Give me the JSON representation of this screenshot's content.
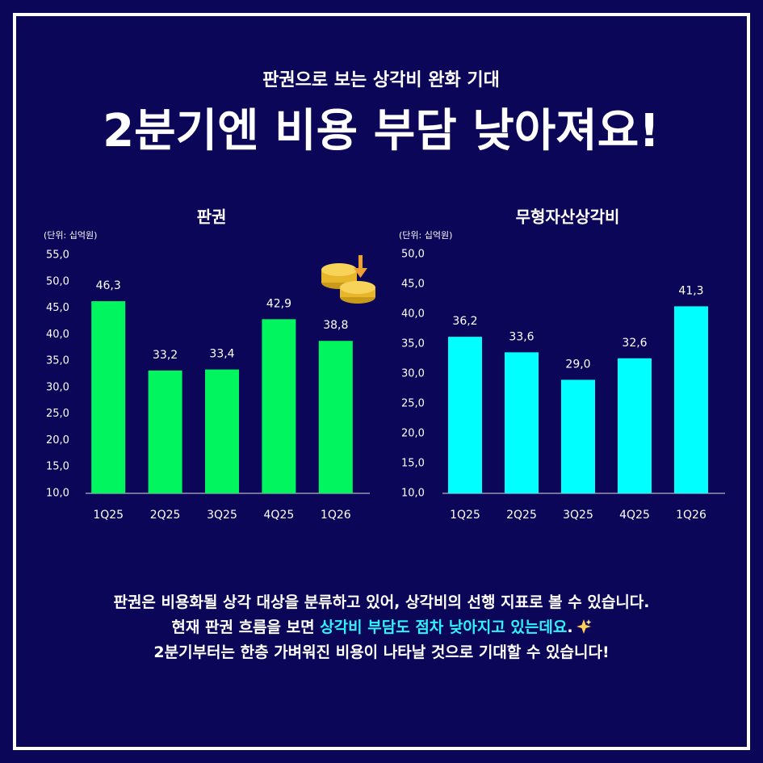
{
  "header": {
    "kicker": "판권으로 보는 상각비 완화 기대",
    "title": "2분기엔 비용 부담 낮아져요!"
  },
  "chart_data": [
    {
      "type": "bar",
      "title": "판권",
      "unit": "(단위: 십억원)",
      "color": "#00f55f",
      "categories": [
        "1Q25",
        "2Q25",
        "3Q25",
        "4Q25",
        "1Q26"
      ],
      "values": [
        46.3,
        33.2,
        33.4,
        42.9,
        38.8
      ],
      "value_labels": [
        "46,3",
        "33,2",
        "33,4",
        "42,9",
        "38,8"
      ],
      "ylim": [
        10,
        55
      ],
      "yticks": [
        {
          "value": 10,
          "label": "10,0"
        },
        {
          "value": 15,
          "label": "15,0"
        },
        {
          "value": 20,
          "label": "20,0"
        },
        {
          "value": 25,
          "label": "25,0"
        },
        {
          "value": 30,
          "label": "30,0"
        },
        {
          "value": 35,
          "label": "35,0"
        },
        {
          "value": 40,
          "label": "40,0"
        },
        {
          "value": 45,
          "label": "45,0"
        },
        {
          "value": 50,
          "label": "50,0"
        },
        {
          "value": 55,
          "label": "55,0"
        }
      ]
    },
    {
      "type": "bar",
      "title": "무형자산상각비",
      "unit": "(단위: 십억원)",
      "color": "#00ffff",
      "categories": [
        "1Q25",
        "2Q25",
        "3Q25",
        "4Q25",
        "1Q26"
      ],
      "values": [
        36.2,
        33.6,
        29.0,
        32.6,
        41.3
      ],
      "value_labels": [
        "36,2",
        "33,6",
        "29,0",
        "32,6",
        "41,3"
      ],
      "ylim": [
        10,
        50
      ],
      "yticks": [
        {
          "value": 10,
          "label": "10,0"
        },
        {
          "value": 15,
          "label": "15,0"
        },
        {
          "value": 20,
          "label": "20,0"
        },
        {
          "value": 25,
          "label": "25,0"
        },
        {
          "value": 30,
          "label": "30,0"
        },
        {
          "value": 35,
          "label": "35,0"
        },
        {
          "value": 40,
          "label": "40,0"
        },
        {
          "value": 45,
          "label": "45,0"
        },
        {
          "value": 50,
          "label": "50,0"
        }
      ]
    }
  ],
  "footer": {
    "line1": "판권은 비용화될 상각 대상을 분류하고 있어, 상각비의 선행 지표로 볼 수 있습니다.",
    "line2_before": "현재 판권 흐름을 보면 ",
    "line2_highlight": "상각비 부담도 점차 낮아지고 있는데요",
    "line2_after": ".",
    "line3": "2분기부터는 한층 가벼워진 비용이 나타날 것으로 기대할 수 있습니다!"
  }
}
